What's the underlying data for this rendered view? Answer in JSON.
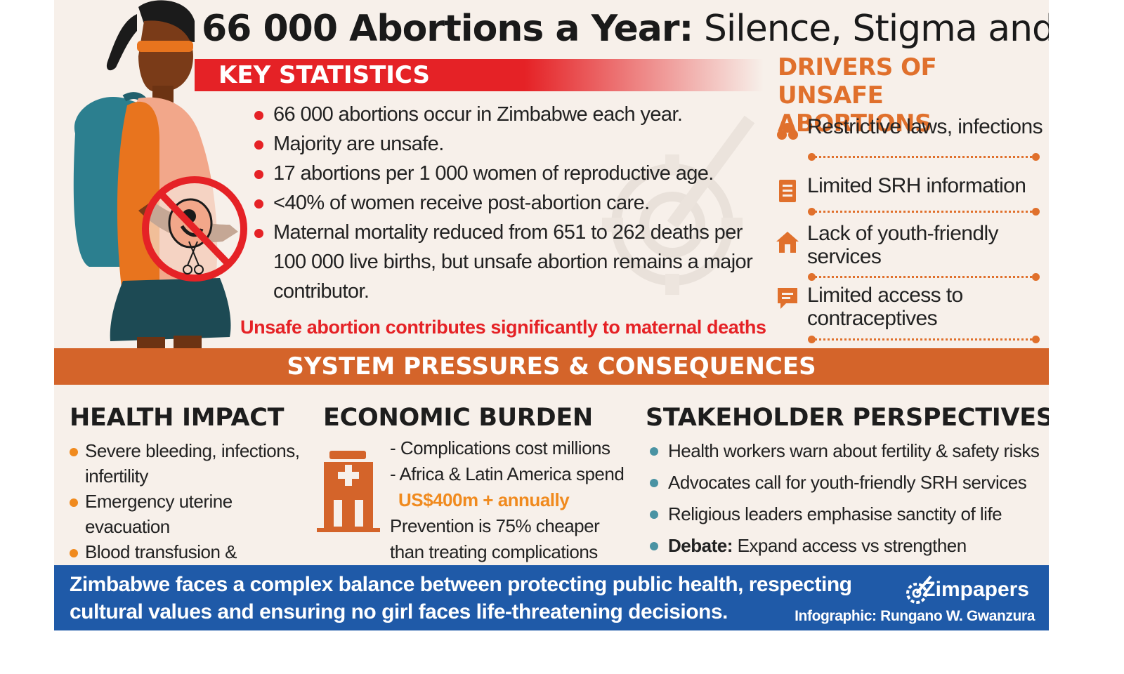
{
  "title": {
    "bold": "66 000 Abortions a Year:",
    "rest": " Silence, Stigma and Danger"
  },
  "key_statistics": {
    "heading": "KEY STATISTICS",
    "items": [
      "66 000 abortions occur in Zimbabwe each year.",
      "Majority are unsafe.",
      "17 abortions per 1 000 women of reproductive age.",
      "<40% of women receive post-abortion care.",
      "Maternal mortality reduced from 651 to 262 deaths per 100 000 live births, but unsafe abortion remains a major contributor."
    ],
    "callout": "Unsafe abortion contributes significantly to maternal deaths"
  },
  "drivers": {
    "heading": "DRIVERS OF UNSAFE ABORTIONS",
    "items": [
      {
        "icon": "virus-icon",
        "label": "Restrictive laws, infections"
      },
      {
        "icon": "document-icon",
        "label": "Limited SRH information"
      },
      {
        "icon": "house-icon",
        "label": "Lack of youth-friendly services"
      },
      {
        "icon": "speech-bubble-icon",
        "label": "Limited access to contraceptives"
      }
    ]
  },
  "system_bar": "SYSTEM PRESSURES & CONSEQUENCES",
  "health_impact": {
    "heading": "HEALTH IMPACT",
    "items": [
      "Severe bleeding, infections, infertility",
      "Emergency uterine evacuation",
      "Blood transfusion & Surgeries"
    ]
  },
  "economic_burden": {
    "heading": "ECONOMIC BURDEN",
    "lines": [
      "- Complications cost millions",
      "- Africa & Latin America spend",
      "US$400m + annually",
      "Prevention is 75% cheaper",
      "than treating complications"
    ],
    "icon": "hospital-icon"
  },
  "stakeholders": {
    "heading": "STAKEHOLDER PERSPECTIVES",
    "items": [
      {
        "bold": "",
        "text": "Health workers warn about fertility & safety risks"
      },
      {
        "bold": "",
        "text": "Advocates call for youth-friendly SRH services"
      },
      {
        "bold": "",
        "text": "Religious leaders emphasise sanctity of life"
      },
      {
        "bold": "Debate:",
        "text": " Expand access vs strengthen prevention"
      }
    ]
  },
  "footer": {
    "text": "Zimbabwe faces a complex balance between protecting public health, respecting cultural values and ensuring no girl faces life-threatening decisions.",
    "brand": "Zimpapers",
    "credit": "Infographic: Rungano W. Gwanzura"
  },
  "colors": {
    "background": "#f7f0ea",
    "red": "#e52226",
    "orange": "#d4642a",
    "drivers_orange": "#e0702c",
    "footer_blue": "#1f5aa8",
    "teal": "#4a93a3"
  }
}
